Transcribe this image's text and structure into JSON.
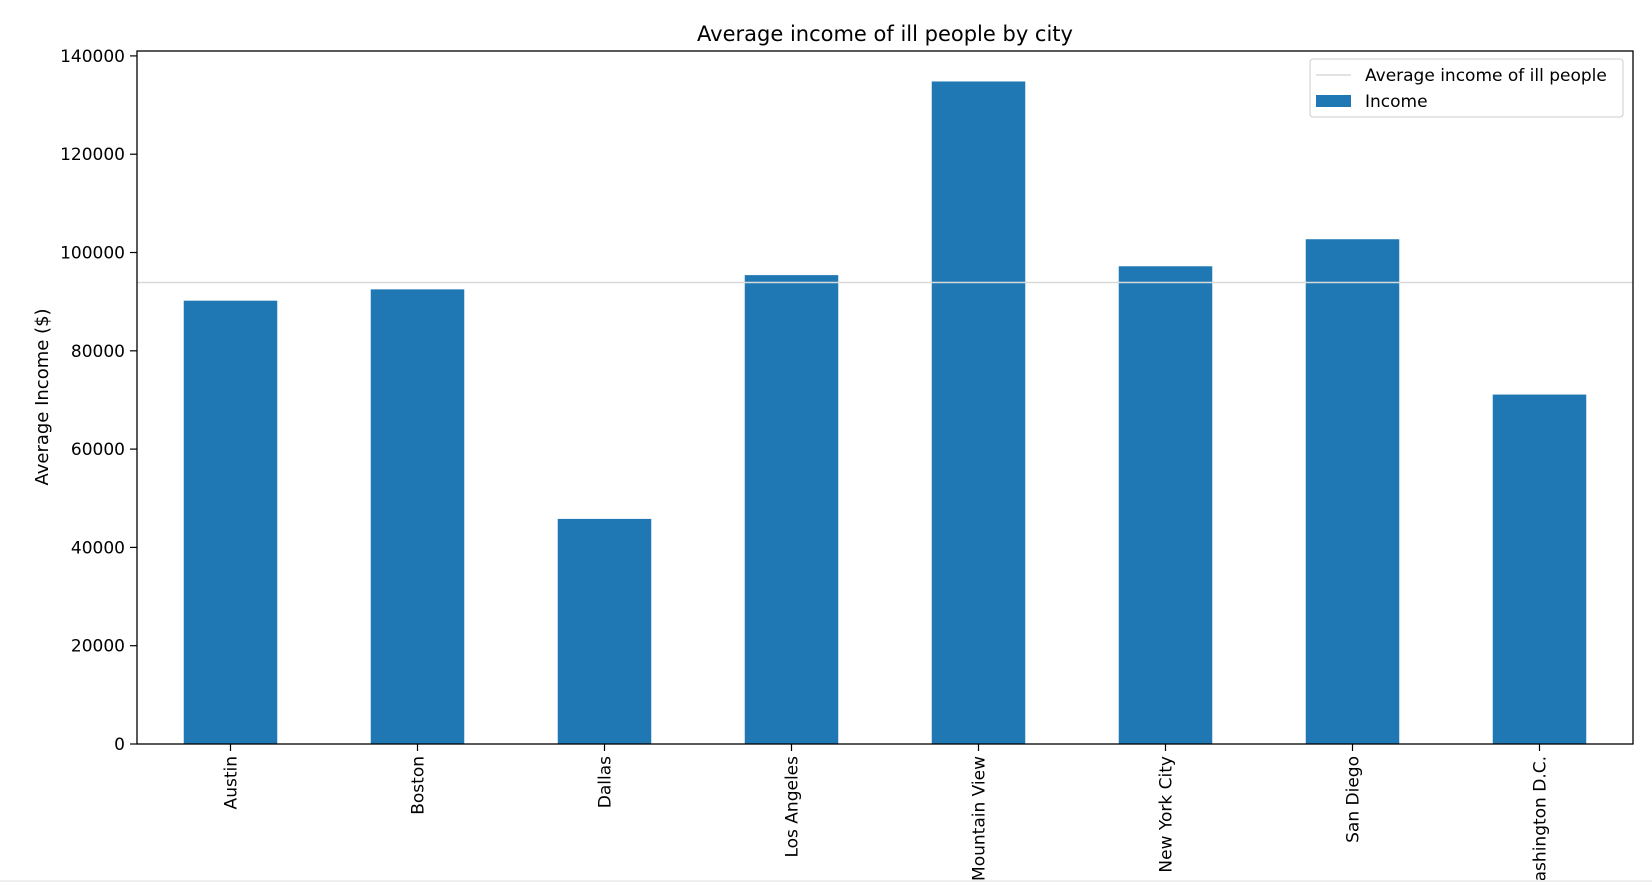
{
  "chart_data": {
    "type": "bar",
    "title": "Average income of ill people by city",
    "xlabel": "",
    "ylabel": "Average Income ($)",
    "categories": [
      "Austin",
      "Boston",
      "Dallas",
      "Los Angeles",
      "Mountain View",
      "New York City",
      "San Diego",
      "Washington D.C."
    ],
    "series": [
      {
        "name": "Income",
        "values": [
          90200,
          92500,
          45800,
          95400,
          134800,
          97200,
          102700,
          71100
        ],
        "color": "#1f77b4"
      }
    ],
    "reference_line": {
      "name": "Average income of ill people",
      "value": 93900,
      "color": "#d9d9d9"
    },
    "ylim": [
      0,
      141000
    ],
    "yticks": [
      0,
      20000,
      40000,
      60000,
      80000,
      100000,
      120000,
      140000
    ],
    "x_tick_rotation": "vertical",
    "grid": false,
    "legend_position": "top-right"
  }
}
